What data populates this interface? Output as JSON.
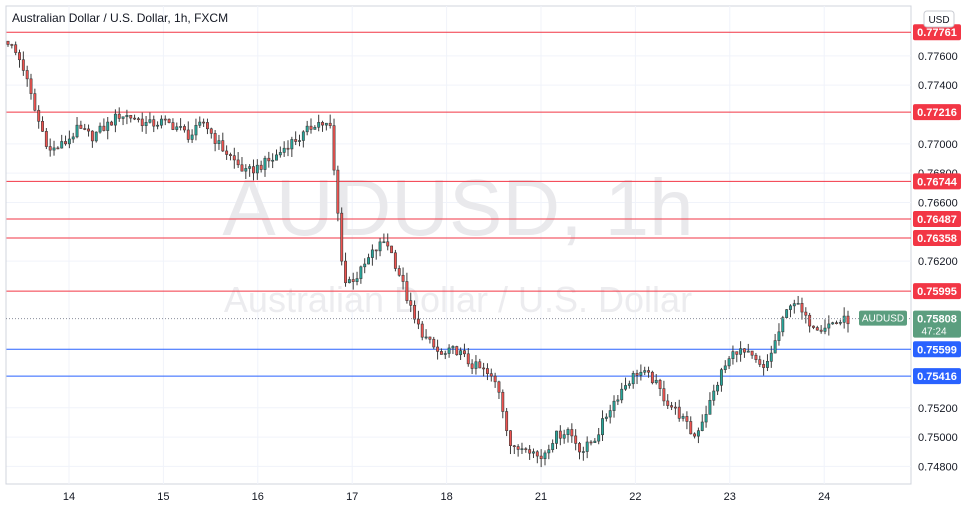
{
  "chart_data": {
    "type": "candlestick",
    "title": "Australian Dollar / U.S. Dollar, 1h, FXCM",
    "currency_badge": "USD",
    "watermark": {
      "symbol": "AUDUSD, 1h",
      "name": "Australian Dollar / U.S. Dollar"
    },
    "ylim": [
      0.7468,
      0.7794
    ],
    "y_ticks": [
      "0.77600",
      "0.77400",
      "0.77000",
      "0.76800",
      "0.76600",
      "0.76200",
      "0.75200",
      "0.75000",
      "0.74800"
    ],
    "x_ticks": [
      "14",
      "15",
      "16",
      "17",
      "18",
      "21",
      "22",
      "23",
      "24"
    ],
    "grid": true,
    "horizontal_levels": [
      {
        "value": 0.77761,
        "label": "0.77761",
        "color": "#f23645"
      },
      {
        "value": 0.77216,
        "label": "0.77216",
        "color": "#f23645"
      },
      {
        "value": 0.76744,
        "label": "0.76744",
        "color": "#f23645"
      },
      {
        "value": 0.76487,
        "label": "0.76487",
        "color": "#f23645"
      },
      {
        "value": 0.76358,
        "label": "0.76358",
        "color": "#f23645"
      },
      {
        "value": 0.75995,
        "label": "0.75995",
        "color": "#f23645"
      },
      {
        "value": 0.75599,
        "label": "0.75599",
        "color": "#2962ff"
      },
      {
        "value": 0.75416,
        "label": "0.75416",
        "color": "#2962ff"
      }
    ],
    "current_price": {
      "symbol": "AUDUSD",
      "value": 0.75808,
      "label": "0.75808",
      "countdown": "47:24",
      "color": "#5b9e7f"
    },
    "path": [
      0.777,
      0.7755,
      0.772,
      0.7695,
      0.77,
      0.771,
      0.7705,
      0.7712,
      0.772,
      0.7718,
      0.7713,
      0.7715,
      0.7712,
      0.7705,
      0.7715,
      0.77,
      0.769,
      0.768,
      0.7685,
      0.769,
      0.77,
      0.7705,
      0.7715,
      0.7712,
      0.7605,
      0.761,
      0.7625,
      0.7635,
      0.761,
      0.758,
      0.7565,
      0.7555,
      0.756,
      0.755,
      0.7545,
      0.7535,
      0.749,
      0.7495,
      0.7485,
      0.75,
      0.7505,
      0.749,
      0.75,
      0.752,
      0.7535,
      0.7545,
      0.754,
      0.7525,
      0.7515,
      0.75,
      0.752,
      0.7545,
      0.756,
      0.7555,
      0.7545,
      0.757,
      0.7595,
      0.758,
      0.7575,
      0.7578,
      0.758
    ],
    "up_color": "#26a69a",
    "down_color": "#ef5350"
  }
}
